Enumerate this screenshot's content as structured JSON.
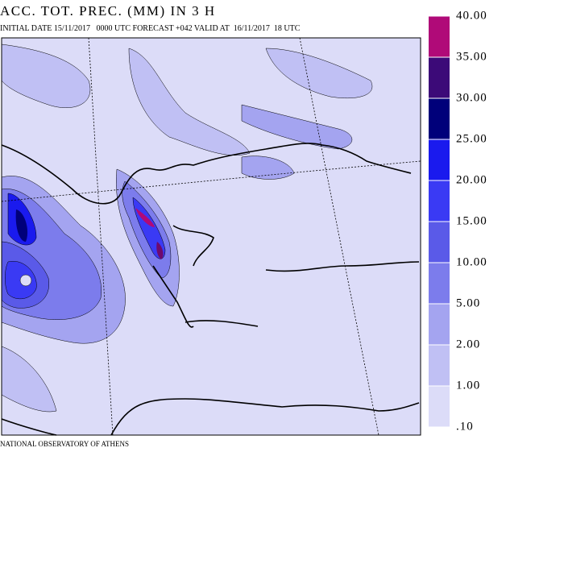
{
  "title": "ACC. TOT. PREC. (MM) IN 3 H",
  "subtitle": "INITIAL DATE 15/11/2017   0000 UTC FORECAST +042 VALID AT  16/11/2017  18 UTC",
  "footer": "NATIONAL OBSERVATORY OF ATHENS",
  "colorbar": {
    "levels": [
      {
        "value": 0.1,
        "label": ".10"
      },
      {
        "value": 1,
        "label": "1.00"
      },
      {
        "value": 2,
        "label": "2.00"
      },
      {
        "value": 5,
        "label": "5.00"
      },
      {
        "value": 10,
        "label": "10.00"
      },
      {
        "value": 15,
        "label": "15.00"
      },
      {
        "value": 20,
        "label": "20.00"
      },
      {
        "value": 25,
        "label": "25.00"
      },
      {
        "value": 30,
        "label": "30.00"
      },
      {
        "value": 35,
        "label": "35.00"
      },
      {
        "value": 40,
        "label": "40.00"
      }
    ],
    "colors": [
      "#dcdcf8",
      "#c0c0f4",
      "#a4a4f0",
      "#7c7cec",
      "#5a5ae8",
      "#3a3af4",
      "#1a1aee",
      "#00007a",
      "#3c0a78",
      "#6e0a6e",
      "#b00a78"
    ]
  }
}
